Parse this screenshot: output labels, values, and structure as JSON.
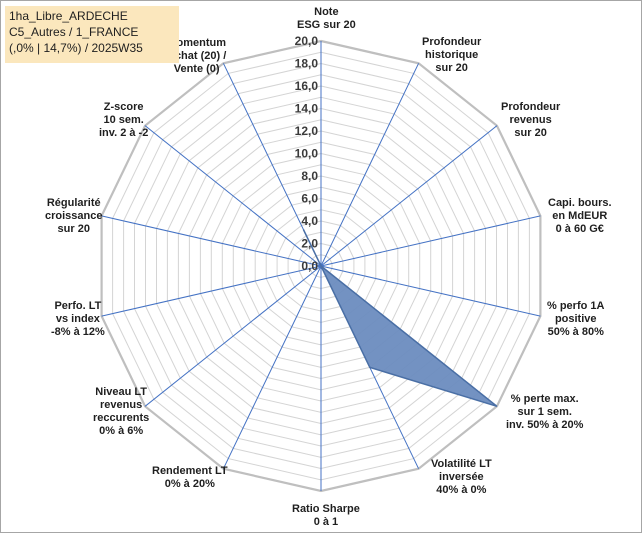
{
  "header": {
    "line1": "1ha_Libre_ARDECHE",
    "line2": "C5_Autres / 1_FRANCE",
    "line3": "(,0% | 14,7%) / 2025W35"
  },
  "chart_data": {
    "type": "radar",
    "title": "",
    "r_range": [
      0,
      20
    ],
    "r_ticks": [
      "0,0",
      "2,0",
      "4,0",
      "6,0",
      "8,0",
      "10,0",
      "12,0",
      "14,0",
      "16,0",
      "18,0",
      "20,0"
    ],
    "grid": true,
    "categories": [
      [
        "Note",
        "ESG sur 20"
      ],
      [
        "Profondeur",
        "historique",
        "sur 20"
      ],
      [
        "Profondeur",
        "revenus",
        "sur 20"
      ],
      [
        "Capi. bours.",
        "en MdEUR",
        "0 à 60 G€"
      ],
      [
        "% perfo 1A",
        "positive",
        "50% à 80%"
      ],
      [
        "% perte max.",
        "sur 1 sem.",
        "inv. 50% à 20%"
      ],
      [
        "Volatilité LT",
        "inversée",
        "40% à 0%"
      ],
      [
        "Ratio Sharpe",
        "0 à 1"
      ],
      [
        "Rendement LT",
        "0% à 20%"
      ],
      [
        "Niveau LT",
        "revenus",
        "reccurents",
        "0% à 6%"
      ],
      [
        "Perfo. LT",
        "vs index",
        "-8% à 12%"
      ],
      [
        "Régularité",
        "croissance",
        "sur 20"
      ],
      [
        "Z-score",
        "10 sem.",
        "inv. 2 à -2"
      ],
      [
        "Momentum",
        "Achat (20) /",
        "Vente (0)"
      ]
    ],
    "series": [
      {
        "values": [
          0,
          0,
          0,
          0,
          0,
          20,
          10,
          0,
          0,
          0,
          0,
          0,
          0,
          3.6
        ],
        "fill": "#6b8cbf",
        "stroke": "#4a6fa5"
      }
    ],
    "colors": {
      "grid": "#d4d4d4",
      "spokes": "#4472c4",
      "outer": "#bfbfbf"
    }
  }
}
